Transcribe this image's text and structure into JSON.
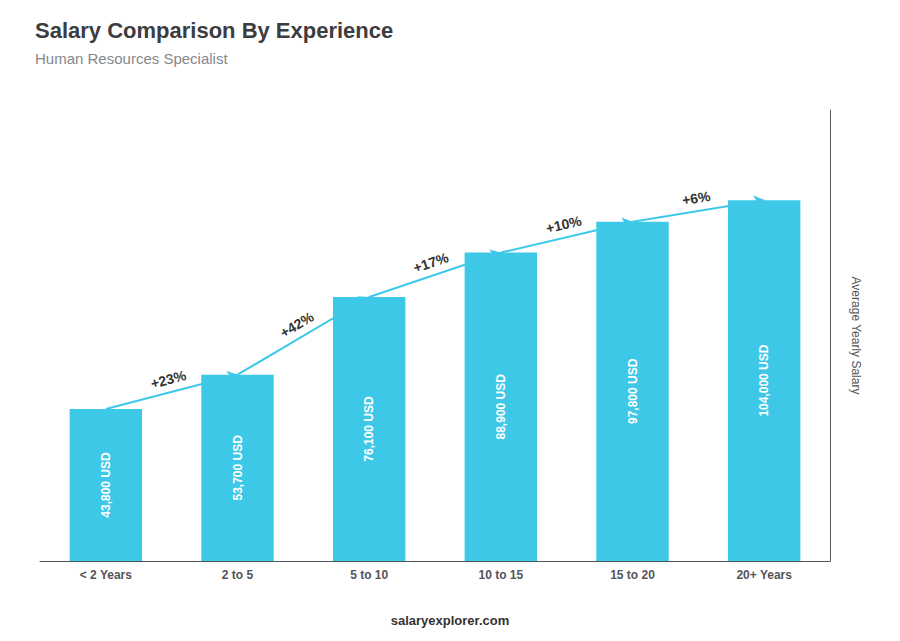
{
  "chart_data": {
    "type": "bar",
    "title": "Salary Comparison By Experience",
    "subtitle": "Human Resources Specialist",
    "categories": [
      "< 2 Years",
      "2 to 5",
      "5 to 10",
      "10 to 15",
      "15 to 20",
      "20+ Years"
    ],
    "values": [
      43800,
      53700,
      76100,
      88900,
      97800,
      104000
    ],
    "value_labels": [
      "43,800 USD",
      "53,700 USD",
      "76,100 USD",
      "88,900 USD",
      "97,800 USD",
      "104,000 USD"
    ],
    "data_labels": true,
    "color": "#3ec8e8",
    "ylim": [
      0,
      130000
    ],
    "ylabel": "Average Yearly Salary",
    "annotations": [
      "+23%",
      "+42%",
      "+17%",
      "+10%",
      "+6%"
    ],
    "footer": "salaryexplorer.com",
    "tick_labels": "x",
    "grid": false
  }
}
